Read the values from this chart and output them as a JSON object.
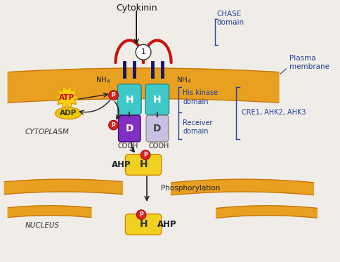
{
  "bg_color": "#f0ede8",
  "plasma_membrane_color": "#E8A020",
  "plasma_membrane_edge": "#C07010",
  "cytoplasm_label": "CYTOPLASM",
  "nucleus_label": "NUCLEUS",
  "cytokinin_label": "Cytokinin",
  "chase_label": "CHASE\ndomain",
  "plasma_label": "Plasma\nmembrane",
  "his_kinase_label": "His kinase\ndomain",
  "cre1_label": "CRE1, AHK2, AHK3",
  "receiver_label": "Receiver\ndomain",
  "cooh_label": "COOH",
  "ahp_label": "AHP",
  "phosphorylation_label": "Phosphorylation",
  "atp_label": "ATP",
  "adp_label": "ADP",
  "H_box_color": "#40C8C8",
  "D_left_color": "#8030C0",
  "D_right_color": "#C8C0E0",
  "AHP_H_color": "#F0D020",
  "P_color": "#E02020",
  "red_loop_color": "#CC1010",
  "dark_blue_stem_color": "#151560",
  "arrow_color": "#202020",
  "label_color": "#2040A0",
  "text_color": "#202020"
}
